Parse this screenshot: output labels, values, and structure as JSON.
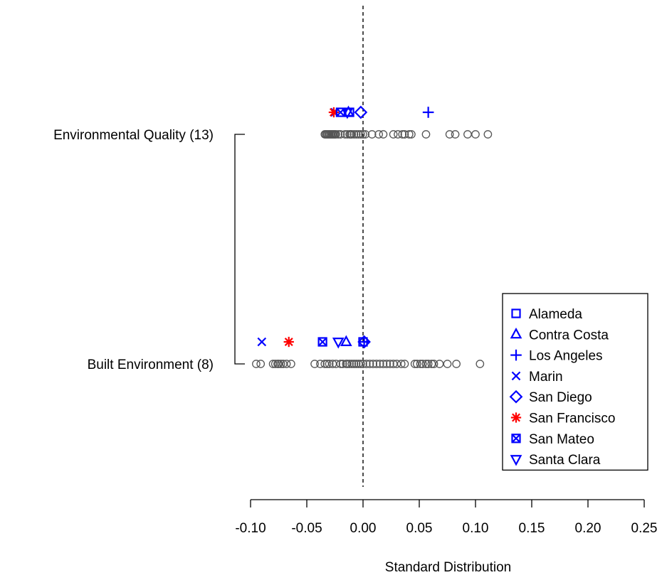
{
  "chart_data": {
    "type": "scatter",
    "xlabel": "Standard Distribution",
    "xlim": [
      -0.1,
      0.25
    ],
    "x_ticks": [
      -0.1,
      -0.05,
      0.0,
      0.05,
      0.1,
      0.15,
      0.2,
      0.25
    ],
    "x_tick_labels": [
      "-0.10",
      "-0.05",
      "0.00",
      "0.05",
      "0.10",
      "0.15",
      "0.20",
      "0.25"
    ],
    "reference_line_x": 0.0,
    "grid": false,
    "legend_position": "bottom-right",
    "categories": [
      "Environmental Quality (13)",
      "Built Environment (8)"
    ],
    "groups": [
      {
        "label": "Environmental Quality (13)",
        "background_points": [
          -0.034,
          -0.033,
          -0.032,
          -0.031,
          -0.03,
          -0.029,
          -0.028,
          -0.027,
          -0.026,
          -0.025,
          -0.024,
          -0.022,
          -0.02,
          -0.016,
          -0.014,
          -0.012,
          -0.011,
          -0.01,
          -0.008,
          -0.006,
          -0.004,
          -0.002,
          0.0,
          0.002,
          0.008,
          0.014,
          0.018,
          0.027,
          0.031,
          0.035,
          0.037,
          0.041,
          0.043,
          0.056,
          0.077,
          0.082,
          0.093,
          0.1,
          0.111
        ],
        "regions": [
          {
            "name": "Alameda",
            "x": -0.012
          },
          {
            "name": "Contra Costa",
            "x": -0.013
          },
          {
            "name": "Los Angeles",
            "x": 0.058
          },
          {
            "name": "Marin",
            "x": -0.025
          },
          {
            "name": "San Diego",
            "x": -0.002
          },
          {
            "name": "San Francisco",
            "x": -0.026
          },
          {
            "name": "San Mateo",
            "x": -0.02
          },
          {
            "name": "Santa Clara",
            "x": -0.014
          }
        ]
      },
      {
        "label": "Built Environment (8)",
        "background_points": [
          -0.095,
          -0.091,
          -0.08,
          -0.078,
          -0.076,
          -0.075,
          -0.073,
          -0.071,
          -0.068,
          -0.064,
          -0.043,
          -0.038,
          -0.034,
          -0.032,
          -0.03,
          -0.027,
          -0.024,
          -0.02,
          -0.018,
          -0.015,
          -0.014,
          -0.012,
          -0.01,
          -0.008,
          -0.006,
          -0.004,
          -0.002,
          0.0,
          0.003,
          0.006,
          0.009,
          0.012,
          0.015,
          0.018,
          0.021,
          0.024,
          0.027,
          0.03,
          0.034,
          0.037,
          0.046,
          0.048,
          0.051,
          0.053,
          0.056,
          0.058,
          0.061,
          0.063,
          0.068,
          0.075,
          0.083,
          0.104
        ],
        "regions": [
          {
            "name": "Alameda",
            "x": 0.0
          },
          {
            "name": "Contra Costa",
            "x": -0.015
          },
          {
            "name": "Los Angeles",
            "x": 0.001
          },
          {
            "name": "Marin",
            "x": -0.09
          },
          {
            "name": "San Diego",
            "x": 0.001
          },
          {
            "name": "San Francisco",
            "x": -0.066
          },
          {
            "name": "San Mateo",
            "x": -0.036
          },
          {
            "name": "Santa Clara",
            "x": -0.022
          }
        ]
      }
    ],
    "legend": [
      {
        "name": "Alameda",
        "marker": "square-open",
        "color": "#0000ff"
      },
      {
        "name": "Contra Costa",
        "marker": "triangle-up-open",
        "color": "#0000ff"
      },
      {
        "name": "Los Angeles",
        "marker": "plus",
        "color": "#0000ff"
      },
      {
        "name": "Marin",
        "marker": "cross",
        "color": "#0000ff"
      },
      {
        "name": "San Diego",
        "marker": "diamond-open",
        "color": "#0000ff"
      },
      {
        "name": "San Francisco",
        "marker": "asterisk",
        "color": "#ff0000"
      },
      {
        "name": "San Mateo",
        "marker": "square-cross",
        "color": "#0000ff"
      },
      {
        "name": "Santa Clara",
        "marker": "triangle-down-open",
        "color": "#0000ff"
      }
    ],
    "background_marker_color": "#555555"
  }
}
